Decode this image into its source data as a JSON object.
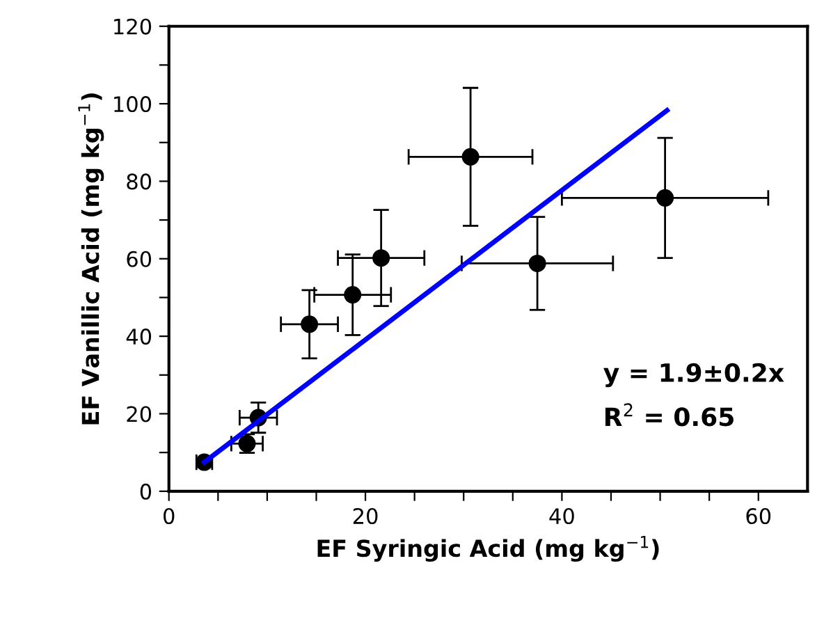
{
  "chart_data": {
    "type": "scatter",
    "xlabel": "EF Syringic Acid (mg kg$^{−1}$)",
    "ylabel": "EF Vanillic Acid (mg kg$^{−1}$)",
    "series": [
      {
        "color": "#000000",
        "x": [
          3.6,
          7.95,
          9.1,
          14.3,
          18.7,
          21.6,
          30.7,
          37.5,
          50.5
        ],
        "values": [
          7.5,
          12.3,
          19.0,
          43.1,
          50.7,
          60.2,
          86.3,
          58.8,
          75.7
        ],
        "errors": [
          1,
          2.4,
          3.9,
          8.8,
          10.4,
          12.4,
          17.8,
          12,
          15.5
        ],
        "xerrors": [
          0.8,
          1.6,
          1.9,
          2.9,
          3.9,
          4.4,
          6.3,
          7.7,
          10.5
        ],
        "marker": "circle"
      },
      {
        "type": "line",
        "color": "#0000ff",
        "x": [
          3.6,
          50.7
        ],
        "values": [
          7.5,
          98.3
        ],
        "marker": "none",
        "line_style": "solid"
      }
    ],
    "xlim": [
      0,
      65
    ],
    "ylim": [
      0,
      120
    ],
    "xticks": [
      0,
      {
        "value": 5,
        "label": null
      },
      {
        "value": 10,
        "label": null
      },
      {
        "value": 15,
        "label": null
      },
      20,
      {
        "value": 25,
        "label": null
      },
      {
        "value": 30,
        "label": null
      },
      {
        "value": 35,
        "label": null
      },
      40,
      {
        "value": 45,
        "label": null
      },
      {
        "value": 50,
        "label": null
      },
      {
        "value": 55,
        "label": null
      },
      60
    ],
    "yticks": [
      0,
      {
        "value": 10,
        "label": null
      },
      20,
      {
        "value": 30,
        "label": null
      },
      40,
      {
        "value": 50,
        "label": null
      },
      60,
      {
        "value": 70,
        "label": null
      },
      80,
      {
        "value": 90,
        "label": null
      },
      100,
      {
        "value": 110,
        "label": null
      },
      120
    ],
    "annotations": [
      "y = 1.9±0.2x",
      "R$^{2}$ = 0.65"
    ],
    "grid": false,
    "legend": false
  }
}
